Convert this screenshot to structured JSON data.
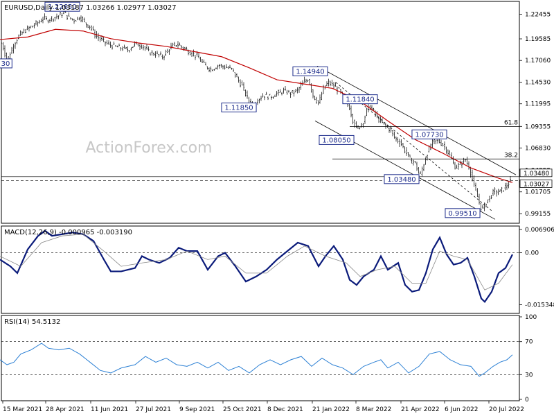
{
  "chart_data": {
    "type": "candlestick",
    "symbol_header": "EURUSD,Daily  1.03187 1.03266 1.02977 1.03027",
    "watermark": "ActionForex.com",
    "x_tick_labels": [
      "15 Mar 2021",
      "28 Apr 2021",
      "11 Jun 2021",
      "27 Jul 2021",
      "9 Sep 2021",
      "25 Oct 2021",
      "8 Dec 2021",
      "21 Jan 2022",
      "8 Mar 2022",
      "21 Apr 2022",
      "6 Jun 2022",
      "20 Jul 2022"
    ],
    "price_panel": {
      "y_tick_labels": [
        "1.22455",
        "1.19585",
        "1.17060",
        "1.14530",
        "1.11995",
        "1.09355",
        "1.06830",
        "1.04255",
        "1.01705",
        "0.99155"
      ],
      "ylim": [
        0.982,
        1.238
      ],
      "current_price": "1.03027",
      "current_price_value": 1.03027,
      "support_level": "1.03480",
      "support_value": 1.0348,
      "price_path": [
        [
          0,
          1.195
        ],
        [
          5,
          1.185
        ],
        [
          10,
          1.17
        ],
        [
          15,
          1.18
        ],
        [
          20,
          1.19
        ],
        [
          28,
          1.2
        ],
        [
          35,
          1.205
        ],
        [
          45,
          1.21
        ],
        [
          55,
          1.215
        ],
        [
          62,
          1.22
        ],
        [
          68,
          1.218
        ],
        [
          75,
          1.22
        ],
        [
          85,
          1.223
        ],
        [
          92,
          1.2265
        ],
        [
          100,
          1.22
        ],
        [
          108,
          1.218
        ],
        [
          115,
          1.222
        ],
        [
          122,
          1.215
        ],
        [
          130,
          1.21
        ],
        [
          138,
          1.2
        ],
        [
          145,
          1.195
        ],
        [
          155,
          1.19
        ],
        [
          165,
          1.187
        ],
        [
          175,
          1.185
        ],
        [
          185,
          1.183
        ],
        [
          195,
          1.19
        ],
        [
          205,
          1.188
        ],
        [
          215,
          1.18
        ],
        [
          225,
          1.178
        ],
        [
          235,
          1.175
        ],
        [
          245,
          1.185
        ],
        [
          255,
          1.19
        ],
        [
          265,
          1.185
        ],
        [
          275,
          1.18
        ],
        [
          285,
          1.175
        ],
        [
          295,
          1.165
        ],
        [
          305,
          1.16
        ],
        [
          315,
          1.165
        ],
        [
          325,
          1.163
        ],
        [
          335,
          1.16
        ],
        [
          342,
          1.15
        ],
        [
          350,
          1.14
        ],
        [
          358,
          1.125
        ],
        [
          365,
          1.1185
        ],
        [
          372,
          1.125
        ],
        [
          380,
          1.13
        ],
        [
          390,
          1.128
        ],
        [
          400,
          1.132
        ],
        [
          410,
          1.135
        ],
        [
          420,
          1.132
        ],
        [
          430,
          1.136
        ],
        [
          438,
          1.145
        ],
        [
          445,
          1.1494
        ],
        [
          452,
          1.13
        ],
        [
          460,
          1.12
        ],
        [
          468,
          1.14
        ],
        [
          475,
          1.145
        ],
        [
          483,
          1.14
        ],
        [
          490,
          1.135
        ],
        [
          498,
          1.125
        ],
        [
          505,
          1.115
        ],
        [
          510,
          1.1
        ],
        [
          515,
          1.09
        ],
        [
          520,
          1.095
        ],
        [
          525,
          1.1
        ],
        [
          532,
          1.1184
        ],
        [
          540,
          1.11
        ],
        [
          548,
          1.1
        ],
        [
          555,
          1.095
        ],
        [
          563,
          1.09
        ],
        [
          570,
          1.08
        ],
        [
          578,
          1.075
        ],
        [
          585,
          1.065
        ],
        [
          592,
          1.055
        ],
        [
          600,
          1.05
        ],
        [
          606,
          1.0348
        ],
        [
          612,
          1.05
        ],
        [
          618,
          1.065
        ],
        [
          625,
          1.075
        ],
        [
          632,
          1.0773
        ],
        [
          640,
          1.072
        ],
        [
          646,
          1.065
        ],
        [
          652,
          1.055
        ],
        [
          658,
          1.045
        ],
        [
          665,
          1.05
        ],
        [
          672,
          1.055
        ],
        [
          678,
          1.045
        ],
        [
          684,
          1.025
        ],
        [
          690,
          1.01
        ],
        [
          696,
          0.9951
        ],
        [
          702,
          1.005
        ],
        [
          708,
          1.012
        ],
        [
          714,
          1.018
        ],
        [
          720,
          1.016
        ],
        [
          726,
          1.02
        ],
        [
          732,
          1.025
        ],
        [
          738,
          1.03
        ]
      ],
      "ma_path": [
        [
          0,
          1.195
        ],
        [
          40,
          1.198
        ],
        [
          80,
          1.207
        ],
        [
          120,
          1.205
        ],
        [
          160,
          1.196
        ],
        [
          200,
          1.191
        ],
        [
          240,
          1.187
        ],
        [
          280,
          1.181
        ],
        [
          320,
          1.175
        ],
        [
          360,
          1.162
        ],
        [
          400,
          1.148
        ],
        [
          440,
          1.143
        ],
        [
          480,
          1.138
        ],
        [
          520,
          1.123
        ],
        [
          560,
          1.1
        ],
        [
          600,
          1.078
        ],
        [
          640,
          1.062
        ],
        [
          680,
          1.045
        ],
        [
          720,
          1.033
        ],
        [
          740,
          1.028
        ]
      ],
      "price_labels": [
        {
          "text": "1.22650",
          "x": 90,
          "price": 1.2265,
          "dy": -6
        },
        {
          "text": "1.14940",
          "x": 448,
          "price": 1.1494,
          "dy": -8
        },
        {
          "text": "1.11850",
          "x": 345,
          "price": 1.1185,
          "dy": 6
        },
        {
          "text": "1.11840",
          "x": 520,
          "price": 1.1184,
          "dy": -6
        },
        {
          "text": "1.08050",
          "x": 486,
          "price": 1.0805,
          "dy": 6
        },
        {
          "text": "1.07730",
          "x": 620,
          "price": 1.0773,
          "dy": -6
        },
        {
          "text": "1.03480",
          "x": 580,
          "price": 1.0348,
          "dy": 6
        },
        {
          "text": "0.99510",
          "x": 668,
          "price": 0.9951,
          "dy": 6
        },
        {
          "text": "30",
          "x": 8,
          "price": 1.17,
          "dy": 6
        }
      ],
      "fib_levels": [
        {
          "label": "61.8",
          "price": 1.0935,
          "x0": 505,
          "x1": 750
        },
        {
          "label": "38.2",
          "price": 1.0555,
          "x0": 480,
          "x1": 750
        }
      ],
      "channel_upper": [
        [
          458,
          1.164
        ],
        [
          745,
          1.037
        ]
      ],
      "channel_lower": [
        [
          455,
          1.1
        ],
        [
          715,
          0.985
        ]
      ],
      "dashed_trend": [
        [
          485,
          1.145
        ],
        [
          710,
          0.995
        ]
      ]
    },
    "macd_panel": {
      "label": "MACD(12,26,9) -0.000965 -0.003190",
      "y_tick_labels": [
        "0.006906",
        "0.00",
        "-0.015348"
      ],
      "ylim": [
        -0.0175,
        0.0075
      ],
      "macd_path": [
        [
          0,
          -0.002
        ],
        [
          15,
          -0.004
        ],
        [
          25,
          -0.006
        ],
        [
          40,
          0.001
        ],
        [
          55,
          0.005
        ],
        [
          65,
          0.0065
        ],
        [
          75,
          0.005
        ],
        [
          90,
          0.0055
        ],
        [
          105,
          0.006
        ],
        [
          120,
          0.0055
        ],
        [
          135,
          0.0035
        ],
        [
          150,
          -0.002
        ],
        [
          160,
          -0.0055
        ],
        [
          175,
          -0.0055
        ],
        [
          195,
          -0.0045
        ],
        [
          205,
          -0.001
        ],
        [
          215,
          -0.002
        ],
        [
          230,
          -0.003
        ],
        [
          245,
          -0.0015
        ],
        [
          258,
          0.0015
        ],
        [
          270,
          0.0005
        ],
        [
          285,
          0.0005
        ],
        [
          300,
          -0.005
        ],
        [
          315,
          -0.001
        ],
        [
          325,
          0.0
        ],
        [
          340,
          -0.004
        ],
        [
          355,
          -0.0085
        ],
        [
          370,
          -0.007
        ],
        [
          385,
          -0.005
        ],
        [
          400,
          -0.002
        ],
        [
          415,
          0.0005
        ],
        [
          430,
          0.003
        ],
        [
          445,
          0.002
        ],
        [
          460,
          -0.004
        ],
        [
          470,
          -0.001
        ],
        [
          482,
          0.002
        ],
        [
          495,
          -0.002
        ],
        [
          505,
          -0.008
        ],
        [
          515,
          -0.0095
        ],
        [
          525,
          -0.007
        ],
        [
          540,
          -0.005
        ],
        [
          550,
          -0.001
        ],
        [
          560,
          -0.005
        ],
        [
          575,
          -0.003
        ],
        [
          585,
          -0.0095
        ],
        [
          595,
          -0.0115
        ],
        [
          605,
          -0.011
        ],
        [
          615,
          -0.006
        ],
        [
          625,
          0.001
        ],
        [
          635,
          0.0045
        ],
        [
          645,
          -0.0005
        ],
        [
          655,
          -0.0035
        ],
        [
          665,
          -0.003
        ],
        [
          675,
          -0.0015
        ],
        [
          685,
          -0.007
        ],
        [
          695,
          -0.0135
        ],
        [
          700,
          -0.0145
        ],
        [
          710,
          -0.0115
        ],
        [
          720,
          -0.006
        ],
        [
          730,
          -0.0045
        ],
        [
          740,
          -0.0005
        ]
      ],
      "signal_path": [
        [
          0,
          -0.001
        ],
        [
          30,
          -0.004
        ],
        [
          60,
          0.003
        ],
        [
          90,
          0.005
        ],
        [
          120,
          0.0055
        ],
        [
          150,
          0.0005
        ],
        [
          175,
          -0.004
        ],
        [
          205,
          -0.003
        ],
        [
          240,
          -0.002
        ],
        [
          270,
          0.0005
        ],
        [
          300,
          -0.002
        ],
        [
          325,
          -0.001
        ],
        [
          355,
          -0.006
        ],
        [
          385,
          -0.006
        ],
        [
          415,
          -0.001
        ],
        [
          440,
          0.002
        ],
        [
          470,
          -0.001
        ],
        [
          500,
          -0.003
        ],
        [
          520,
          -0.007
        ],
        [
          545,
          -0.005
        ],
        [
          570,
          -0.004
        ],
        [
          595,
          -0.009
        ],
        [
          615,
          -0.009
        ],
        [
          635,
          0.0005
        ],
        [
          655,
          -0.001
        ],
        [
          675,
          -0.002
        ],
        [
          700,
          -0.011
        ],
        [
          720,
          -0.009
        ],
        [
          740,
          -0.0035
        ]
      ]
    },
    "rsi_panel": {
      "label": "RSI(14) 54.5132",
      "y_tick_labels": [
        "100",
        "70",
        "30",
        "0"
      ],
      "ylim": [
        0,
        100
      ],
      "levels": [
        70,
        30
      ],
      "rsi_path": [
        [
          0,
          48
        ],
        [
          10,
          42
        ],
        [
          20,
          45
        ],
        [
          30,
          55
        ],
        [
          45,
          60
        ],
        [
          60,
          68
        ],
        [
          70,
          62
        ],
        [
          85,
          60
        ],
        [
          100,
          62
        ],
        [
          115,
          55
        ],
        [
          130,
          45
        ],
        [
          145,
          35
        ],
        [
          160,
          32
        ],
        [
          175,
          38
        ],
        [
          195,
          42
        ],
        [
          210,
          52
        ],
        [
          225,
          45
        ],
        [
          240,
          50
        ],
        [
          255,
          42
        ],
        [
          270,
          40
        ],
        [
          285,
          45
        ],
        [
          300,
          38
        ],
        [
          315,
          45
        ],
        [
          330,
          35
        ],
        [
          345,
          40
        ],
        [
          360,
          32
        ],
        [
          375,
          42
        ],
        [
          390,
          48
        ],
        [
          405,
          42
        ],
        [
          420,
          48
        ],
        [
          435,
          52
        ],
        [
          450,
          40
        ],
        [
          465,
          50
        ],
        [
          480,
          42
        ],
        [
          495,
          38
        ],
        [
          510,
          30
        ],
        [
          525,
          40
        ],
        [
          540,
          45
        ],
        [
          550,
          48
        ],
        [
          560,
          38
        ],
        [
          575,
          45
        ],
        [
          590,
          32
        ],
        [
          605,
          40
        ],
        [
          620,
          55
        ],
        [
          635,
          58
        ],
        [
          650,
          48
        ],
        [
          665,
          42
        ],
        [
          680,
          40
        ],
        [
          692,
          28
        ],
        [
          700,
          32
        ],
        [
          712,
          40
        ],
        [
          722,
          45
        ],
        [
          732,
          48
        ],
        [
          740,
          54
        ]
      ]
    }
  }
}
